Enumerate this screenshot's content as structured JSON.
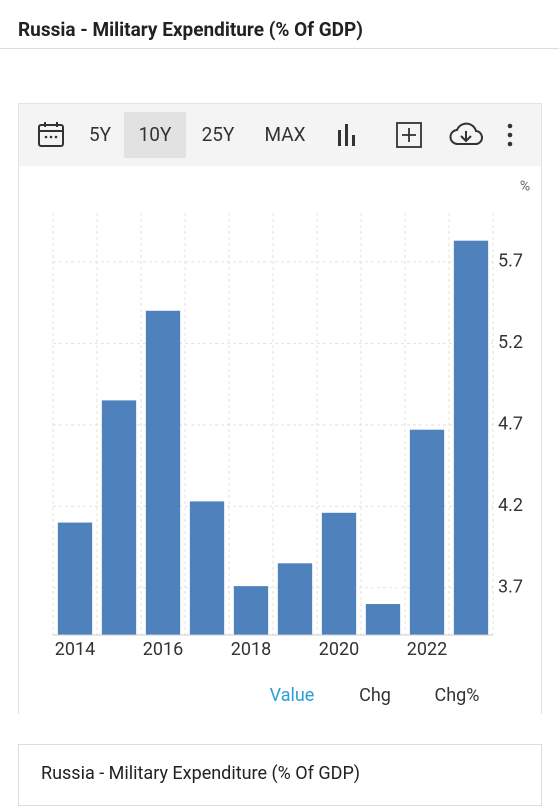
{
  "header": {
    "title": "Russia - Military Expenditure (% Of GDP)"
  },
  "toolbar": {
    "ranges": [
      "5Y",
      "10Y",
      "25Y",
      "MAX"
    ]
  },
  "chart_data": {
    "type": "bar",
    "unit_label": "%",
    "categories": [
      "2014",
      null,
      "2016",
      null,
      "2018",
      null,
      "2020",
      null,
      "2022",
      null
    ],
    "values": [
      4.1,
      4.85,
      5.4,
      4.23,
      3.71,
      3.85,
      4.16,
      3.6,
      4.67,
      5.83
    ],
    "color": "#4f81bd",
    "ylim": [
      3.41,
      6.0
    ],
    "yticks": [
      3.7,
      4.2,
      4.7,
      5.2,
      5.7
    ],
    "grid": true
  },
  "tabs": [
    "Value",
    "Chg",
    "Chg%"
  ],
  "footer": {
    "title": "Russia - Military Expenditure (% Of GDP)"
  }
}
